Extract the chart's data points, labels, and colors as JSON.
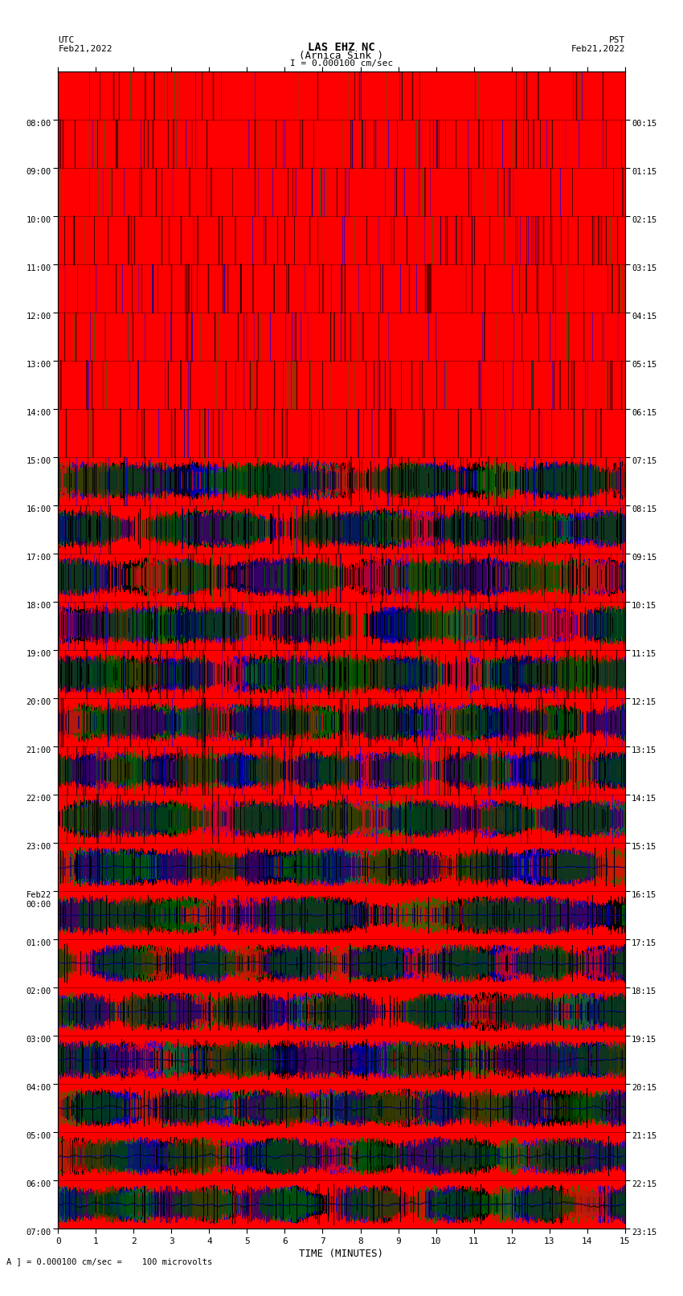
{
  "title_line1": "LAS EHZ NC",
  "title_line2": "(Arnica Sink )",
  "scale_text": "I = 0.000100 cm/sec",
  "utc_label": "UTC\nFeb21,2022",
  "pst_label": "PST\nFeb21,2022",
  "xlabel": "TIME (MINUTES)",
  "footer_text": "A ] = 0.000100 cm/sec =    100 microvolts",
  "xlim": [
    0,
    15
  ],
  "left_yticks_labels": [
    "08:00",
    "09:00",
    "10:00",
    "11:00",
    "12:00",
    "13:00",
    "14:00",
    "15:00",
    "16:00",
    "17:00",
    "18:00",
    "19:00",
    "20:00",
    "21:00",
    "22:00",
    "23:00",
    "Feb22\n00:00",
    "01:00",
    "02:00",
    "03:00",
    "04:00",
    "05:00",
    "06:00",
    "07:00"
  ],
  "right_yticks_labels": [
    "00:15",
    "01:15",
    "02:15",
    "03:15",
    "04:15",
    "05:15",
    "06:15",
    "07:15",
    "08:15",
    "09:15",
    "10:15",
    "11:15",
    "12:15",
    "13:15",
    "14:15",
    "15:15",
    "16:15",
    "17:15",
    "18:15",
    "19:15",
    "20:15",
    "21:15",
    "22:15",
    "23:15"
  ],
  "bg_color": "#ffffff",
  "n_rows": 24,
  "minutes_per_row": 15,
  "n_dense_rows": 16,
  "seed": 42
}
